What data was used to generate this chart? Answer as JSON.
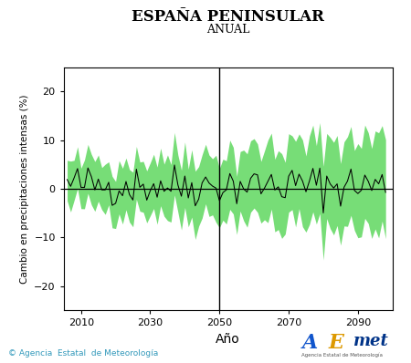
{
  "title": "ESPAÑA PENINSULAR",
  "subtitle": "ANUAL",
  "xlabel": "Año",
  "ylabel": "Cambio en precipitaciones intensas (%)",
  "xlim": [
    2005,
    2100
  ],
  "ylim": [
    -25,
    25
  ],
  "yticks": [
    -20,
    -10,
    0,
    10,
    20
  ],
  "xticks": [
    2010,
    2030,
    2050,
    2070,
    2090
  ],
  "vline_x": 2050,
  "hline_y": 0,
  "band_color": "#77dd77",
  "line_color": "#000000",
  "bg_color": "#ffffff",
  "seed": 42,
  "x_start": 2006,
  "x_end": 2098,
  "footer_text": "© Agencia  Estatal  de Meteorología",
  "footer_color": "#3399bb",
  "title_fontsize": 12,
  "subtitle_fontsize": 9,
  "xlabel_fontsize": 10,
  "ylabel_fontsize": 7.5
}
